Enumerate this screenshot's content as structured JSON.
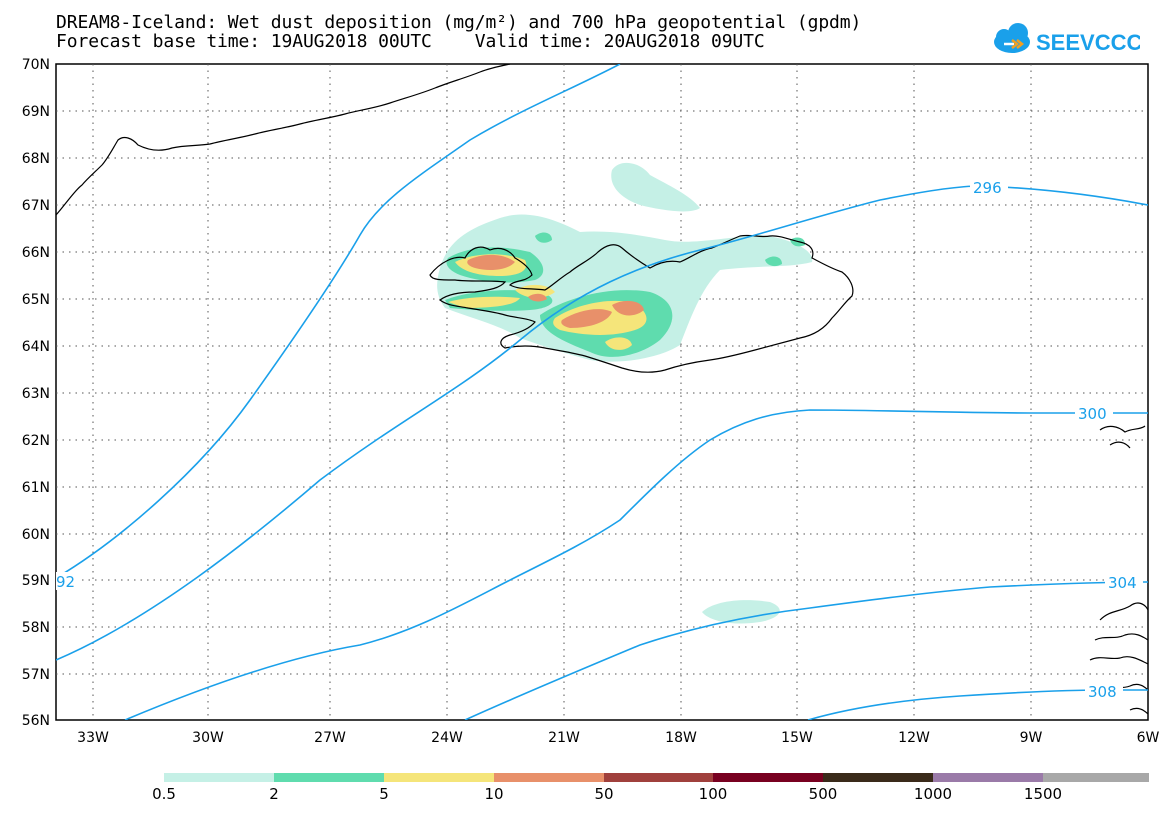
{
  "title": {
    "line1": "DREAM8-Iceland: Wet dust deposition (mg/m²) and 700 hPa geopotential (gpdm)",
    "line2": "Forecast base time: 19AUG2018 00UTC    Valid time: 20AUG2018 09UTC"
  },
  "logo": {
    "text": "SEEVCCC",
    "icon": "cloud-logo-icon",
    "color": "#1aa0ea"
  },
  "map": {
    "lat_labels": [
      "70N",
      "69N",
      "68N",
      "67N",
      "66N",
      "65N",
      "64N",
      "63N",
      "62N",
      "61N",
      "60N",
      "59N",
      "58N",
      "57N",
      "56N"
    ],
    "lon_labels": [
      "33W",
      "30W",
      "27W",
      "24W",
      "21W",
      "18W",
      "15W",
      "12W",
      "9W",
      "6W"
    ],
    "contours": [
      {
        "level_label": "296",
        "color": "#1aa0ea"
      },
      {
        "level_label": "300",
        "color": "#1aa0ea"
      },
      {
        "level_label": "304",
        "color": "#1aa0ea"
      },
      {
        "level_label": "308",
        "color": "#1aa0ea"
      },
      {
        "level_label": "92",
        "color": "#1aa0ea"
      }
    ],
    "coastline_color": "#000000",
    "grid": "dotted"
  },
  "colorbar": {
    "colors": [
      "#c5f0e6",
      "#5fdcae",
      "#f5e57a",
      "#e8906a",
      "#a0403c",
      "#780020",
      "#3a2a1a",
      "#9a7aa8",
      "#a8a8a8"
    ],
    "labels": [
      "0.5",
      "2",
      "5",
      "10",
      "50",
      "100",
      "500",
      "1000",
      "1500"
    ]
  }
}
